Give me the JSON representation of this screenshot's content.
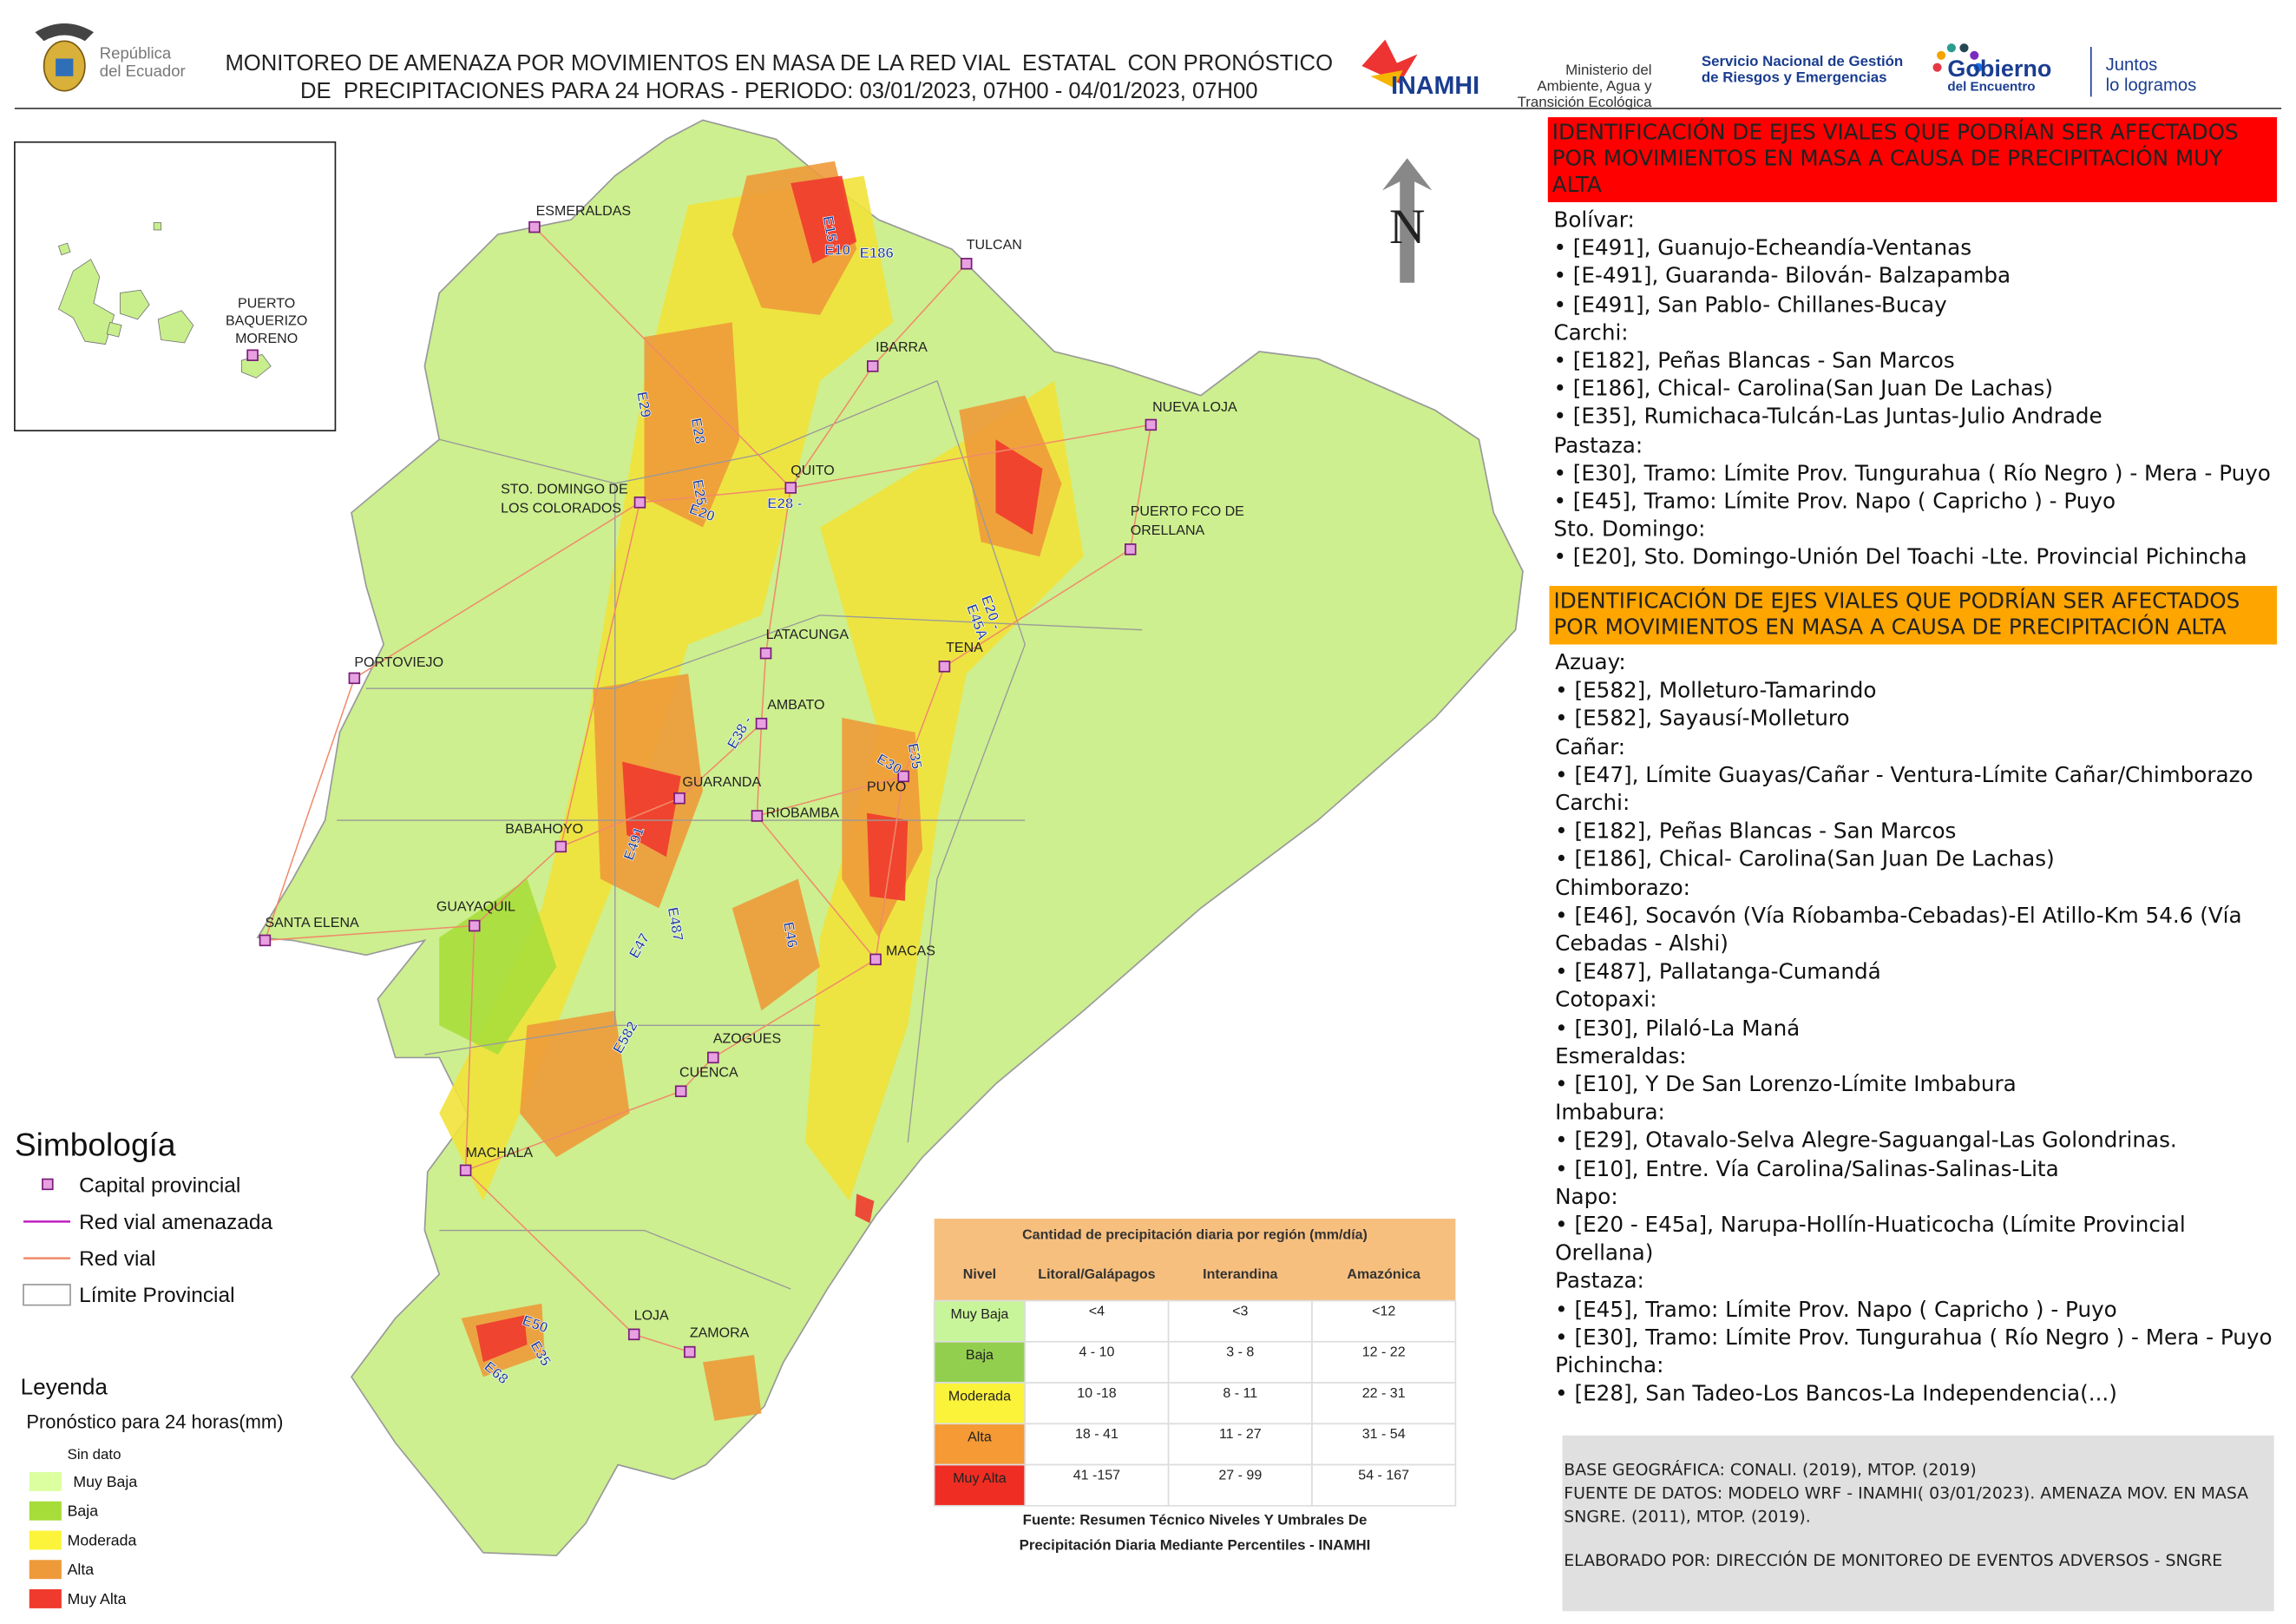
{
  "header": {
    "title_lines": [
      "MONITOREO DE AMENAZA POR MOVIMIENTOS EN MASA DE LA RED VIAL  ESTATAL  CON PRONÓSTICO",
      "DE  PRECIPITACIONES PARA 24 HORAS - PERIODO: 03/01/2023, 07H00 - 04/01/2023, 07H00"
    ],
    "logos": {
      "republica": [
        "República",
        "del Ecuador"
      ],
      "inamhi": "INAMHI",
      "ministerio": [
        "Ministerio del",
        "Ambiente, Agua y",
        "Transición Ecológica"
      ],
      "sngre": [
        "Servicio Nacional de Gestión",
        "de Riesgos y Emergencias"
      ],
      "gobierno": [
        "Gobierno",
        "del Encuentro"
      ],
      "lema": [
        "Juntos",
        "lo logramos"
      ]
    }
  },
  "map": {
    "north": "N",
    "inset_city": [
      "PUERTO",
      "BAQUERIZO",
      "MORENO"
    ],
    "cities": [
      [
        "ESMERALDAS"
      ],
      [
        "TULCAN"
      ],
      [
        "IBARRA"
      ],
      [
        "NUEVA LOJA"
      ],
      [
        "QUITO"
      ],
      [
        "STO. DOMINGO DE",
        "LOS COLORADOS"
      ],
      [
        "PUERTO FCO DE",
        "ORELLANA"
      ],
      [
        "PORTOVIEJO"
      ],
      [
        "LATACUNGA"
      ],
      [
        "TENA"
      ],
      [
        "AMBATO"
      ],
      [
        "PUYO"
      ],
      [
        "GUARANDA"
      ],
      [
        "RIOBAMBA"
      ],
      [
        "BABAHOYO"
      ],
      [
        "GUAYAQUIL"
      ],
      [
        "SANTA ELENA"
      ],
      [
        "MACAS"
      ],
      [
        "AZOGUES"
      ],
      [
        "CUENCA"
      ],
      [
        "MACHALA"
      ],
      [
        "LOJA"
      ],
      [
        "ZAMORA"
      ]
    ],
    "roads": [
      "E15",
      "E10",
      "E186",
      "E29",
      "E28",
      "E25",
      "E20",
      "E28 -",
      "E20 -",
      "E45A",
      "E35",
      "E30",
      "E38 -",
      "E491",
      "E487",
      "E47",
      "E46",
      "E582",
      "E50",
      "E35",
      "E68"
    ]
  },
  "symbology": {
    "title": "Simbología",
    "items": [
      "Capital provincial",
      "Red vial amenazada",
      "Red vial",
      "Límite Provincial"
    ]
  },
  "legend": {
    "title": "Leyenda",
    "subtitle": "Pronóstico para 24 horas(mm)",
    "no_data": "Sin dato",
    "items": [
      "Muy Baja",
      "Baja",
      "Moderada",
      "Alta",
      "Muy Alta"
    ]
  },
  "table": {
    "title": "Cantidad de precipitación diaria por región (mm/día)",
    "columns": [
      "Nivel",
      "Litoral/Galápagos",
      "Interandina",
      "Amazónica"
    ],
    "rows": [
      [
        "Muy Baja",
        "<4",
        "<3",
        "<12"
      ],
      [
        "Baja",
        "4 - 10",
        "3 - 8",
        "12 - 22"
      ],
      [
        "Moderada",
        "10 -18",
        "8 - 11",
        "22 - 31"
      ],
      [
        "Alta",
        "18 - 41",
        "11 - 27",
        "31 - 54"
      ],
      [
        "Muy Alta",
        "41 -157",
        "27 - 99",
        "54 - 167"
      ]
    ],
    "source": [
      "Fuente: Resumen Técnico Niveles Y Umbrales De",
      "Precipitación Diaria Mediante Percentiles - INAMHI"
    ]
  },
  "very_high": {
    "header": "IDENTIFICACIÓN DE EJES VIALES QUE PODRÍAN SER AFECTADOS POR MOVIMIENTOS EN MASA A CAUSA DE PRECIPITACIÓN MUY ALTA",
    "groups": [
      {
        "province": "Bolívar:",
        "items": [
          "[E491], Guanujo-Echeandía-Ventanas",
          "[E-491], Guaranda- Bilován- Balzapamba",
          "[E491], San Pablo- Chillanes-Bucay"
        ]
      },
      {
        "province": "Carchi:",
        "items": [
          "[E182], Peñas Blancas - San Marcos",
          "[E186], Chical- Carolina(San Juan De Lachas)",
          "[E35], Rumichaca-Tulcán-Las Juntas-Julio Andrade"
        ]
      },
      {
        "province": "Pastaza:",
        "items": [
          "[E30], Tramo: Límite Prov. Tungurahua ( Río Negro ) - Mera - Puyo",
          "[E45], Tramo: Límite Prov. Napo ( Capricho ) - Puyo"
        ]
      },
      {
        "province": "Sto. Domingo:",
        "items": [
          "[E20], Sto. Domingo-Unión Del Toachi -Lte. Provincial Pichincha"
        ]
      }
    ]
  },
  "high": {
    "header": "IDENTIFICACIÓN DE EJES VIALES QUE PODRÍAN SER AFECTADOS POR MOVIMIENTOS EN MASA A CAUSA DE PRECIPITACIÓN  ALTA",
    "groups": [
      {
        "province": "Azuay:",
        "items": [
          "[E582], Molleturo-Tamarindo",
          "[E582], Sayausí-Molleturo"
        ]
      },
      {
        "province": "Cañar:",
        "items": [
          "[E47], Límite Guayas/Cañar - Ventura-Límite Cañar/Chimborazo"
        ]
      },
      {
        "province": "Carchi:",
        "items": [
          "[E182], Peñas Blancas - San Marcos",
          "[E186], Chical- Carolina(San Juan De Lachas)"
        ]
      },
      {
        "province": "Chimborazo:",
        "items": [
          "[E46], Socavón (Vía Ríobamba-Cebadas)-El Atillo-Km 54.6 (Vía Cebadas - Alshi)",
          "[E487], Pallatanga-Cumandá"
        ]
      },
      {
        "province": "Cotopaxi:",
        "items": [
          "[E30], Pilaló-La Maná"
        ]
      },
      {
        "province": "Esmeraldas:",
        "items": [
          "[E10], Y De San Lorenzo-Límite Imbabura"
        ]
      },
      {
        "province": "Imbabura:",
        "items": [
          "[E29], Otavalo-Selva Alegre-Saguangal-Las Golondrinas.",
          "[E10], Entre. Vía Carolina/Salinas-Salinas-Lita"
        ]
      },
      {
        "province": "Napo:",
        "items": [
          "[E20 - E45a], Narupa-Hollín-Huaticocha (Límite Provincial Orellana)"
        ]
      },
      {
        "province": "Pastaza:",
        "items": [
          "[E45], Tramo: Límite Prov. Napo ( Capricho ) - Puyo",
          "[E30], Tramo: Límite Prov. Tungurahua ( Río Negro ) - Mera - Puyo"
        ]
      },
      {
        "province": "Pichincha:",
        "items": [
          "[E28], San Tadeo-Los Bancos-La Independencia(...)"
        ]
      }
    ]
  },
  "footer": [
    "BASE GEOGRÁFICA: CONALI. (2019), MTOP. (2019)",
    "FUENTE DE DATOS: MODELO WRF - INAMHI( 03/01/2023).  AMENAZA MOV. EN MASA SNGRE. (2011), MTOP. (2019).",
    "ELABORADO POR: DIRECCIÓN DE MONITOREO DE EVENTOS ADVERSOS - SNGRE"
  ]
}
